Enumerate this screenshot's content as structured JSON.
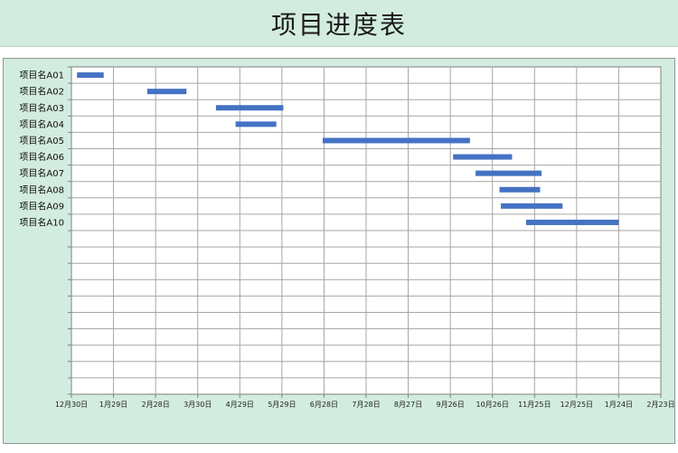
{
  "title": "项目进度表",
  "chart_data": {
    "type": "bar",
    "orientation": "horizontal-gantt",
    "categories": [
      "项目名A01",
      "项目名A02",
      "项目名A03",
      "项目名A04",
      "项目名A05",
      "项目名A06",
      "项目名A07",
      "项目名A08",
      "项目名A09",
      "项目名A10"
    ],
    "start": [
      "2022-01-03",
      "2022-02-22",
      "2022-04-12",
      "2022-04-26",
      "2022-06-27",
      "2022-09-28",
      "2022-10-14",
      "2022-10-31",
      "2022-11-01",
      "2022-11-19"
    ],
    "end": [
      "2022-01-22",
      "2022-03-22",
      "2022-05-30",
      "2022-05-25",
      "2022-10-10",
      "2022-11-09",
      "2022-11-30",
      "2022-11-29",
      "2022-12-15",
      "2023-01-24"
    ],
    "x_ticks": [
      "12月30日",
      "1月29日",
      "2月28日",
      "3月30日",
      "4月29日",
      "5月29日",
      "6月28日",
      "7月28日",
      "8月27日",
      "9月26日",
      "10月26日",
      "11月25日",
      "12月25日",
      "1月24日",
      "2月23日"
    ],
    "xlim": [
      "2021-12-30",
      "2023-02-23"
    ],
    "row_slots": 20,
    "bar_color": "#4472c4",
    "grid": true
  }
}
